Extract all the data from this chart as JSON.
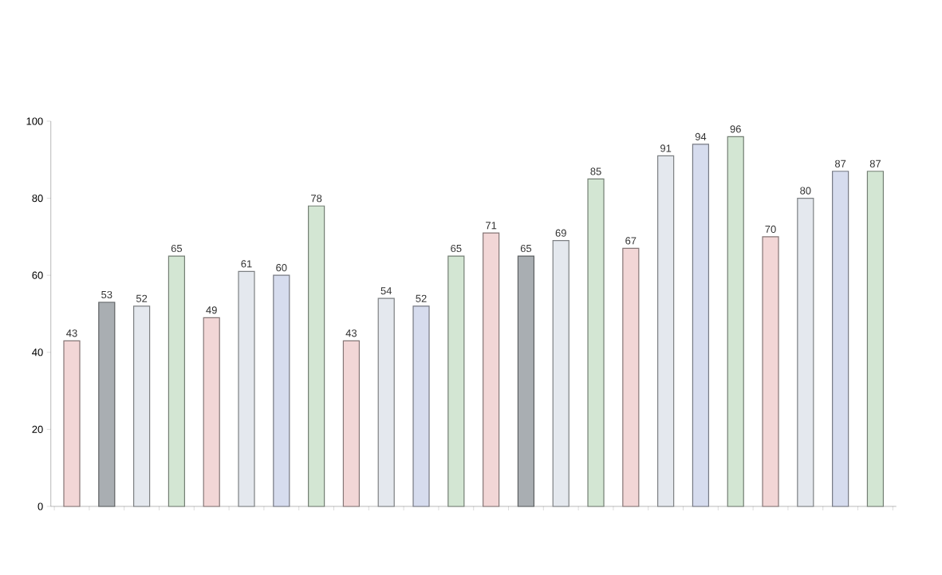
{
  "chart_data": {
    "type": "bar",
    "categories": [
      null,
      null,
      null,
      null,
      null,
      null,
      null,
      null,
      null,
      null,
      null,
      null,
      null,
      null,
      null,
      null,
      null,
      null,
      null,
      null,
      null,
      null,
      null,
      null
    ],
    "values": [
      43,
      53,
      52,
      65,
      49,
      61,
      60,
      78,
      43,
      54,
      52,
      65,
      71,
      65,
      69,
      85,
      67,
      91,
      94,
      96,
      70,
      80,
      87,
      87
    ],
    "colors": [
      "#f2d6d6",
      "#a9aeb2",
      "#e4e8ee",
      "#d3e6d3",
      "#f2d6d6",
      "#e4e8ee",
      "#d6dcee",
      "#d3e6d3",
      "#f2d6d6",
      "#e4e8ee",
      "#d6dcee",
      "#d3e6d3",
      "#f2d6d6",
      "#a9aeb2",
      "#e4e8ee",
      "#d3e6d3",
      "#f2d6d6",
      "#e4e8ee",
      "#d6dcee",
      "#d3e6d3",
      "#f2d6d6",
      "#e4e8ee",
      "#d6dcee",
      "#d3e6d3"
    ],
    "ylim": [
      0,
      100
    ],
    "yticks": [
      0,
      20,
      40,
      60,
      80,
      100
    ],
    "data_labels": true,
    "tick_labels": "y",
    "grid": false
  }
}
